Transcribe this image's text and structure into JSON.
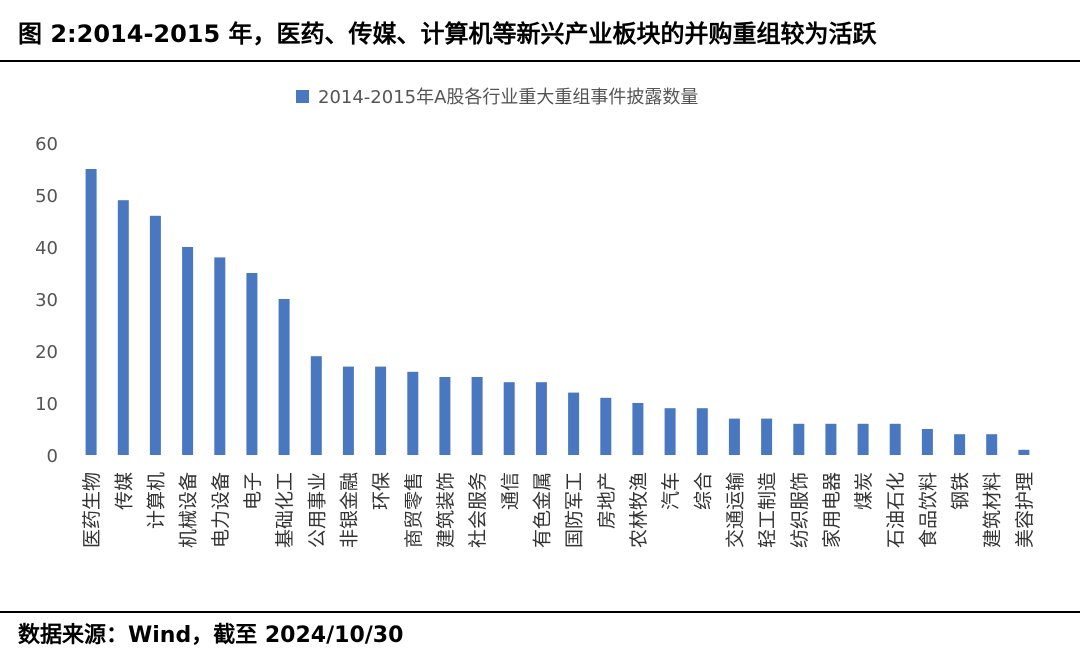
{
  "figure": {
    "title": "图 2:2014-2015 年，医药、传媒、计算机等新兴产业板块的并购重组较为活跃",
    "source": "数据来源：Wind，截至 2024/10/30"
  },
  "chart_data": {
    "type": "bar",
    "title": "",
    "xlabel": "",
    "ylabel": "",
    "ylim": [
      0,
      60
    ],
    "yticks": [
      0,
      10,
      20,
      30,
      40,
      50,
      60
    ],
    "grid": false,
    "legend_position": "top-center",
    "bar_color": "#4a78c0",
    "categories": [
      "医药生物",
      "传媒",
      "计算机",
      "机械设备",
      "电力设备",
      "电子",
      "基础化工",
      "公用事业",
      "非银金融",
      "环保",
      "商贸零售",
      "建筑装饰",
      "社会服务",
      "通信",
      "有色金属",
      "国防军工",
      "房地产",
      "农林牧渔",
      "汽车",
      "综合",
      "交通运输",
      "轻工制造",
      "纺织服饰",
      "家用电器",
      "煤炭",
      "石油石化",
      "食品饮料",
      "钢铁",
      "建筑材料",
      "美容护理"
    ],
    "series": [
      {
        "name": "2014-2015年A股各行业重大重组事件披露数量",
        "values": [
          55,
          49,
          46,
          40,
          38,
          35,
          30,
          19,
          17,
          17,
          16,
          15,
          15,
          14,
          14,
          12,
          11,
          10,
          9,
          9,
          7,
          7,
          6,
          6,
          6,
          6,
          5,
          4,
          4,
          1
        ]
      }
    ]
  }
}
